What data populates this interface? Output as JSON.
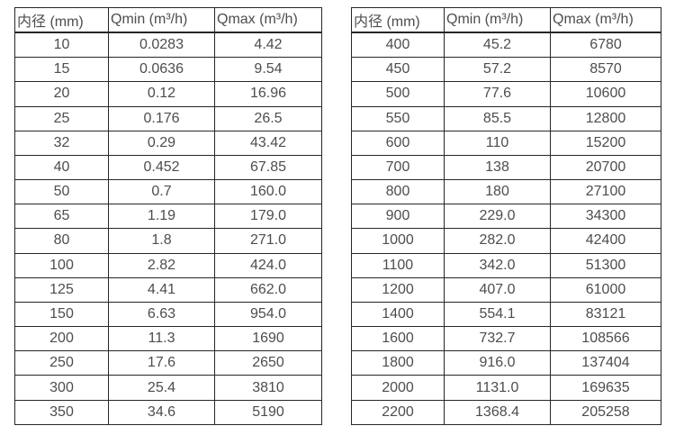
{
  "page": {
    "background": "#ffffff",
    "text_color": "#4d4d4d",
    "border_color": "#262626"
  },
  "tables": [
    {
      "name": "small-diameter-flow-table",
      "headers": [
        "内径 (mm)",
        "Qmin (m³/h)",
        "Qmax (m³/h)"
      ],
      "rows": [
        [
          "10",
          "0.0283",
          "4.42"
        ],
        [
          "15",
          "0.0636",
          "9.54"
        ],
        [
          "20",
          "0.12",
          "16.96"
        ],
        [
          "25",
          "0.176",
          "26.5"
        ],
        [
          "32",
          "0.29",
          "43.42"
        ],
        [
          "40",
          "0.452",
          "67.85"
        ],
        [
          "50",
          "0.7",
          "160.0"
        ],
        [
          "65",
          "1.19",
          "179.0"
        ],
        [
          "80",
          "1.8",
          "271.0"
        ],
        [
          "100",
          "2.82",
          "424.0"
        ],
        [
          "125",
          "4.41",
          "662.0"
        ],
        [
          "150",
          "6.63",
          "954.0"
        ],
        [
          "200",
          "11.3",
          "1690"
        ],
        [
          "250",
          "17.6",
          "2650"
        ],
        [
          "300",
          "25.4",
          "3810"
        ],
        [
          "350",
          "34.6",
          "5190"
        ]
      ]
    },
    {
      "name": "large-diameter-flow-table",
      "headers": [
        "内径 (mm)",
        "Qmin (m³/h)",
        "Qmax (m³/h)"
      ],
      "rows": [
        [
          "400",
          "45.2",
          "6780"
        ],
        [
          "450",
          "57.2",
          "8570"
        ],
        [
          "500",
          "77.6",
          "10600"
        ],
        [
          "550",
          "85.5",
          "12800"
        ],
        [
          "600",
          "110",
          "15200"
        ],
        [
          "700",
          "138",
          "20700"
        ],
        [
          "800",
          "180",
          "27100"
        ],
        [
          "900",
          "229.0",
          "34300"
        ],
        [
          "1000",
          "282.0",
          "42400"
        ],
        [
          "1100",
          "342.0",
          "51300"
        ],
        [
          "1200",
          "407.0",
          "61000"
        ],
        [
          "1400",
          "554.1",
          "83121"
        ],
        [
          "1600",
          "732.7",
          "108566"
        ],
        [
          "1800",
          "916.0",
          "137404"
        ],
        [
          "2000",
          "1131.0",
          "169635"
        ],
        [
          "2200",
          "1368.4",
          "205258"
        ]
      ]
    }
  ]
}
